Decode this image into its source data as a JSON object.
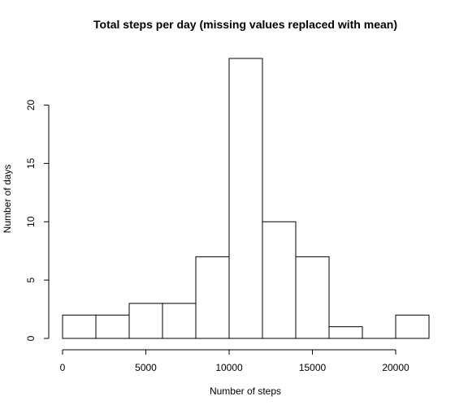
{
  "chart_data": {
    "type": "histogram",
    "title": "Total steps per day (missing values replaced with mean)",
    "xlabel": "Number of steps",
    "ylabel": "Number of days",
    "bin_edges": [
      0,
      2000,
      4000,
      6000,
      8000,
      10000,
      12000,
      14000,
      16000,
      18000,
      20000,
      22000
    ],
    "values": [
      2,
      2,
      3,
      3,
      7,
      24,
      10,
      7,
      1,
      0,
      2
    ],
    "xlim": [
      0,
      22000
    ],
    "ylim": [
      0,
      24
    ],
    "x_ticks": [
      0,
      5000,
      10000,
      15000,
      20000
    ],
    "y_ticks": [
      0,
      5,
      10,
      15,
      20
    ],
    "grid": false,
    "bar_fill": "#ffffff",
    "bar_stroke": "#000000"
  }
}
